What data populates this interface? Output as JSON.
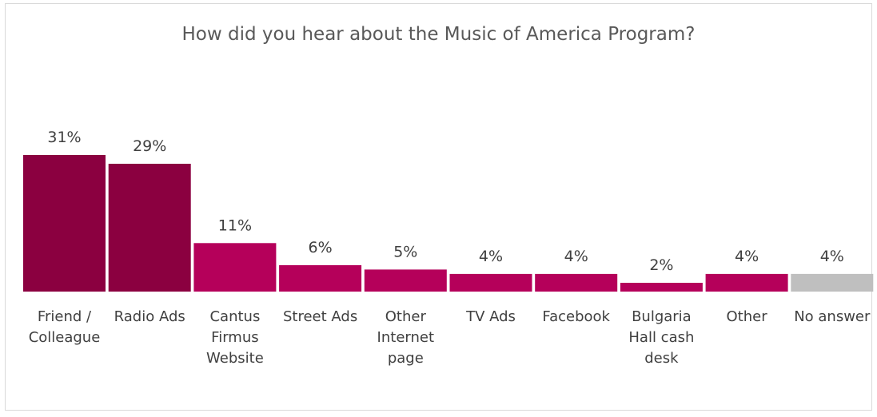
{
  "chart_data": {
    "type": "bar",
    "title": "How did you hear about the Music of America Program?",
    "xlabel": "",
    "ylabel": "",
    "ylim": [
      0,
      31
    ],
    "grid": false,
    "legend": "none",
    "categories": [
      "Friend / Colleague",
      "Radio Ads",
      "Cantus Firmus Website",
      "Street Ads",
      "Other Internet page",
      "TV Ads",
      "Facebook",
      "Bulgaria Hall cash desk",
      "Other",
      "No answer"
    ],
    "category_lines": [
      [
        "Friend /",
        "Colleague"
      ],
      [
        "Radio Ads"
      ],
      [
        "Cantus",
        "Firmus",
        "Website"
      ],
      [
        "Street Ads"
      ],
      [
        "Other",
        "Internet",
        "page"
      ],
      [
        "TV Ads"
      ],
      [
        "Facebook"
      ],
      [
        "Bulgaria",
        "Hall cash",
        "desk"
      ],
      [
        "Other"
      ],
      [
        "No answer"
      ]
    ],
    "values": [
      31,
      29,
      11,
      6,
      5,
      4,
      4,
      2,
      4,
      4
    ],
    "data_labels": [
      "31%",
      "29%",
      "11%",
      "6%",
      "5%",
      "4%",
      "4%",
      "2%",
      "4%",
      "4%"
    ],
    "colors": [
      "#8b0040",
      "#8b0040",
      "#b5005a",
      "#b5005a",
      "#b5005a",
      "#b5005a",
      "#b5005a",
      "#b5005a",
      "#b5005a",
      "#bfbfbf"
    ]
  }
}
